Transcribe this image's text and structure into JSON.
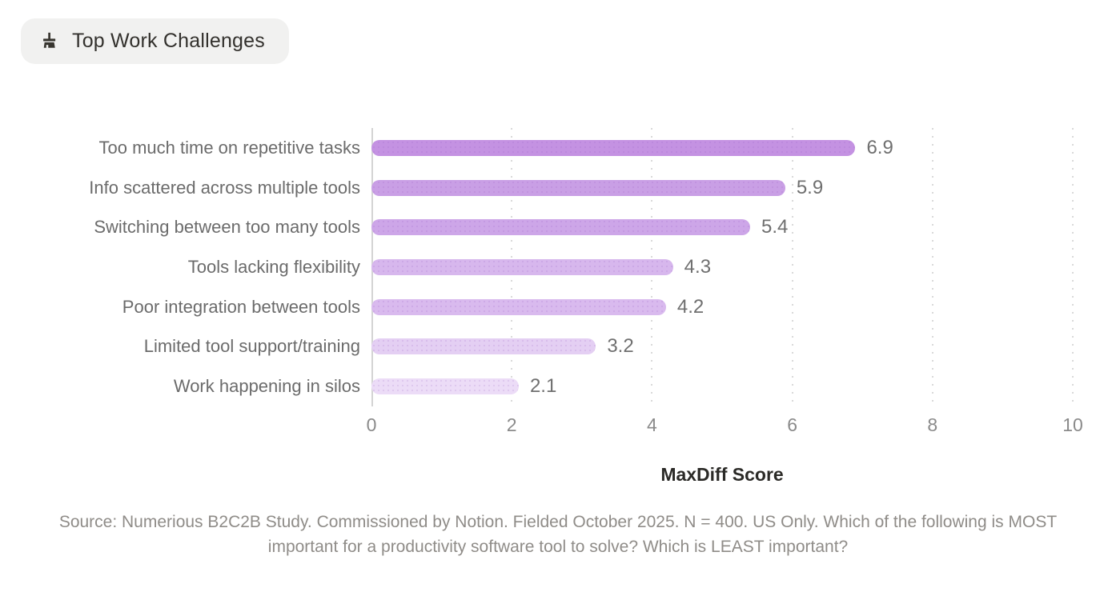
{
  "badge": {
    "label": "Top Work Challenges",
    "icon": "broom-icon",
    "bg_color": "#f1f1f0",
    "text_color": "#33312d",
    "icon_color": "#37352f"
  },
  "chart_data": {
    "type": "bar",
    "orientation": "horizontal",
    "title": "Top Work Challenges",
    "categories": [
      "Too much time on repetitive tasks",
      "Info scattered across multiple tools",
      "Switching between too many tools",
      "Tools lacking flexibility",
      "Poor integration between tools",
      "Limited tool support/training",
      "Work happening in silos"
    ],
    "values": [
      6.9,
      5.9,
      5.4,
      4.3,
      4.2,
      3.2,
      2.1
    ],
    "value_labels": [
      "6.9",
      "5.9",
      "5.4",
      "4.3",
      "4.2",
      "3.2",
      "2.1"
    ],
    "bar_colors": [
      "#c492e2",
      "#c99fe5",
      "#cda6e8",
      "#d7b7ed",
      "#d9baee",
      "#e4cff3",
      "#ecdcf7"
    ],
    "xlabel": "MaxDiff Score",
    "xlim": [
      0,
      10
    ],
    "xticks": [
      "0",
      "2",
      "4",
      "6",
      "8",
      "10"
    ],
    "grid": "vertical dotted gridlines at ticks, solid y-axis baseline, no x-axis line",
    "legend": "none"
  },
  "colors": {
    "grid": "#d9d9d9",
    "axis": "#d4d4d4",
    "category_label": "#6b6b6b",
    "value_label": "#6f6f6f",
    "tick_label": "#8a8a8a",
    "xlabel_text": "#2b2a27",
    "source_text": "#8f8c88"
  },
  "source": {
    "text": "Source: Numerious B2C2B Study. Commissioned by Notion. Fielded October 2025. N = 400. US Only. Which of the following is MOST important for a productivity software tool to solve? Which is LEAST important?"
  }
}
